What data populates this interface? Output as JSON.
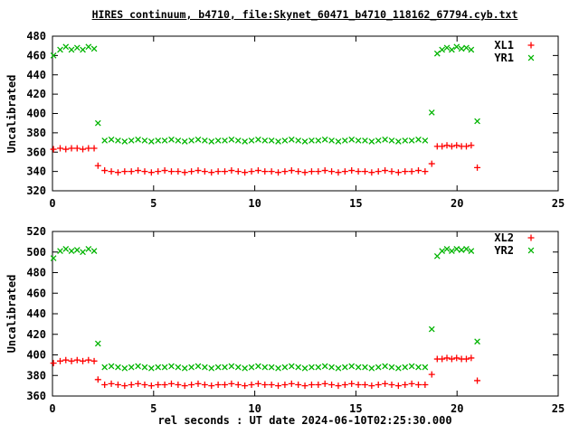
{
  "title": "HIRES continuum, b4710, file:Skynet_60471_b4710_118162_67794.cyb.txt",
  "labels": {
    "ylabel_top": "Uncalibrated",
    "ylabel_bottom": "Uncalibrated",
    "xlabel": "rel seconds : UT date 2024-06-10T02:25:30.000"
  },
  "colors": {
    "red": "#ff0000",
    "green": "#00b400",
    "text": "#000000",
    "background": "#ffffff"
  },
  "chart_data": [
    {
      "type": "scatter",
      "panel": "top",
      "ylabel": "Uncalibrated",
      "xlabel": "",
      "xlim": [
        0,
        25
      ],
      "ylim": [
        320,
        480
      ],
      "xticks": [
        0,
        5,
        10,
        15,
        20,
        25
      ],
      "yticks": [
        320,
        340,
        360,
        380,
        400,
        420,
        440,
        460,
        480
      ],
      "grid": false,
      "legend_position": "top-right",
      "x": [
        0.05,
        0.38,
        0.66,
        0.94,
        1.22,
        1.5,
        1.78,
        2.06,
        2.25,
        2.58,
        2.91,
        3.24,
        3.57,
        3.9,
        4.23,
        4.56,
        4.89,
        5.22,
        5.55,
        5.88,
        6.21,
        6.54,
        6.87,
        7.2,
        7.53,
        7.86,
        8.19,
        8.52,
        8.85,
        9.18,
        9.51,
        9.84,
        10.17,
        10.5,
        10.83,
        11.16,
        11.49,
        11.82,
        12.15,
        12.48,
        12.81,
        13.14,
        13.47,
        13.8,
        14.13,
        14.46,
        14.79,
        15.12,
        15.45,
        15.78,
        16.11,
        16.44,
        16.77,
        17.1,
        17.43,
        17.76,
        18.09,
        18.42,
        18.75,
        19.02,
        19.26,
        19.5,
        19.74,
        19.98,
        20.22,
        20.46,
        20.7,
        21.0
      ],
      "series": [
        {
          "name": "XL1",
          "marker": "plus",
          "color": "#ff0000",
          "values": [
            363,
            364,
            363,
            364,
            364,
            363,
            364,
            364,
            346,
            341,
            340,
            339,
            340,
            340,
            341,
            340,
            339,
            340,
            341,
            340,
            340,
            339,
            340,
            341,
            340,
            339,
            340,
            340,
            341,
            340,
            339,
            340,
            341,
            340,
            340,
            339,
            340,
            341,
            340,
            339,
            340,
            340,
            341,
            340,
            339,
            340,
            341,
            340,
            340,
            339,
            340,
            341,
            340,
            339,
            340,
            340,
            341,
            340,
            348,
            366,
            366,
            367,
            366,
            367,
            366,
            366,
            367,
            344
          ]
        },
        {
          "name": "YR1",
          "marker": "cross",
          "color": "#00b400",
          "values": [
            460,
            466,
            469,
            466,
            468,
            466,
            469,
            467,
            390,
            372,
            373,
            372,
            371,
            372,
            373,
            372,
            371,
            372,
            372,
            373,
            372,
            371,
            372,
            373,
            372,
            371,
            372,
            372,
            373,
            372,
            371,
            372,
            373,
            372,
            372,
            371,
            372,
            373,
            372,
            371,
            372,
            372,
            373,
            372,
            371,
            372,
            373,
            372,
            372,
            371,
            372,
            373,
            372,
            371,
            372,
            372,
            373,
            372,
            401,
            462,
            466,
            468,
            466,
            469,
            467,
            468,
            466,
            392
          ]
        }
      ]
    },
    {
      "type": "scatter",
      "panel": "bottom",
      "ylabel": "Uncalibrated",
      "xlabel": "rel seconds : UT date 2024-06-10T02:25:30.000",
      "xlim": [
        0,
        25
      ],
      "ylim": [
        360,
        520
      ],
      "xticks": [
        0,
        5,
        10,
        15,
        20,
        25
      ],
      "yticks": [
        360,
        380,
        400,
        420,
        440,
        460,
        480,
        500,
        520
      ],
      "grid": false,
      "legend_position": "top-right",
      "x": [
        0.05,
        0.38,
        0.66,
        0.94,
        1.22,
        1.5,
        1.78,
        2.06,
        2.25,
        2.58,
        2.91,
        3.24,
        3.57,
        3.9,
        4.23,
        4.56,
        4.89,
        5.22,
        5.55,
        5.88,
        6.21,
        6.54,
        6.87,
        7.2,
        7.53,
        7.86,
        8.19,
        8.52,
        8.85,
        9.18,
        9.51,
        9.84,
        10.17,
        10.5,
        10.83,
        11.16,
        11.49,
        11.82,
        12.15,
        12.48,
        12.81,
        13.14,
        13.47,
        13.8,
        14.13,
        14.46,
        14.79,
        15.12,
        15.45,
        15.78,
        16.11,
        16.44,
        16.77,
        17.1,
        17.43,
        17.76,
        18.09,
        18.42,
        18.75,
        19.02,
        19.26,
        19.5,
        19.74,
        19.98,
        20.22,
        20.46,
        20.7,
        21.0
      ],
      "series": [
        {
          "name": "XL2",
          "marker": "plus",
          "color": "#ff0000",
          "values": [
            392,
            394,
            395,
            394,
            395,
            394,
            395,
            394,
            376,
            371,
            372,
            371,
            370,
            371,
            372,
            371,
            370,
            371,
            371,
            372,
            371,
            370,
            371,
            372,
            371,
            370,
            371,
            371,
            372,
            371,
            370,
            371,
            372,
            371,
            371,
            370,
            371,
            372,
            371,
            370,
            371,
            371,
            372,
            371,
            370,
            371,
            372,
            371,
            371,
            370,
            371,
            372,
            371,
            370,
            371,
            372,
            371,
            371,
            381,
            396,
            396,
            397,
            396,
            397,
            396,
            396,
            397,
            375
          ]
        },
        {
          "name": "YR2",
          "marker": "cross",
          "color": "#00b400",
          "values": [
            494,
            501,
            503,
            501,
            502,
            500,
            503,
            501,
            411,
            388,
            389,
            388,
            387,
            388,
            389,
            388,
            387,
            388,
            388,
            389,
            388,
            387,
            388,
            389,
            388,
            387,
            388,
            388,
            389,
            388,
            387,
            388,
            389,
            388,
            388,
            387,
            388,
            389,
            388,
            387,
            388,
            388,
            389,
            388,
            387,
            388,
            389,
            388,
            388,
            387,
            388,
            389,
            388,
            387,
            388,
            389,
            388,
            388,
            425,
            496,
            501,
            503,
            501,
            503,
            502,
            503,
            501,
            413
          ]
        }
      ]
    }
  ]
}
